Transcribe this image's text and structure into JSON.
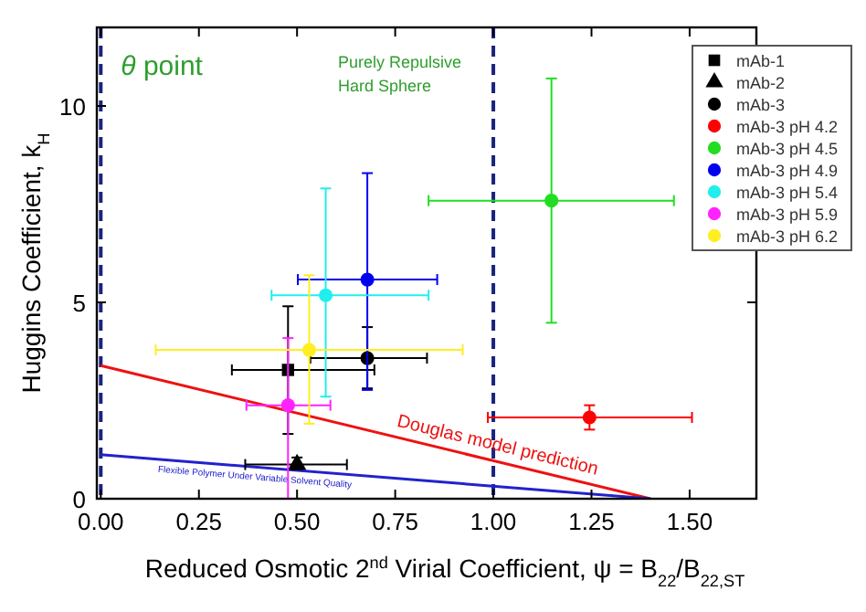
{
  "chart_data": {
    "type": "scatter",
    "xlabel": "Reduced Osmotic 2$^{nd}$ Virial Coefficient, ψ = B$_{22}$/B$_{22,ST}$",
    "ylabel": "Huggins Coefficient, k$_{H}$",
    "xlim": [
      -0.01,
      1.67
    ],
    "ylim": [
      0,
      12
    ],
    "xticks": [
      {
        "value": 0,
        "label": "0.00"
      },
      {
        "value": 0.25,
        "label": "0.25"
      },
      {
        "value": 0.5,
        "label": "0.50"
      },
      {
        "value": 0.75,
        "label": "0.75"
      },
      {
        "value": 1,
        "label": "1.00"
      },
      {
        "value": 1.25,
        "label": "1.25"
      },
      {
        "value": 1.5,
        "label": "1.50"
      }
    ],
    "yticks": [
      0,
      5,
      10
    ],
    "legend": "top right",
    "ref_lines": [
      {
        "axis": "x",
        "value": 0,
        "label": "θ point",
        "color": "#1a237e",
        "line_style": "dashed"
      },
      {
        "axis": "x",
        "value": 1,
        "label": "Purely Repulsive Hard Sphere",
        "color": "#1a237e",
        "line_style": "dashed"
      }
    ],
    "series": [
      {
        "name": "Douglas model prediction",
        "type": "line",
        "color": "#ee1111",
        "x": [
          0,
          1.4
        ],
        "values": [
          3.39,
          0
        ]
      },
      {
        "name": "Flexible Polymer Under Variable Solvent Quality",
        "type": "line",
        "color": "#2222cc",
        "x": [
          0,
          1.4
        ],
        "values": [
          1.12,
          0
        ]
      },
      {
        "name": "mAb-1",
        "color": "#000000",
        "marker": "square",
        "x": [
          0.477
        ],
        "values": [
          3.28
        ],
        "errors": [
          [
            1.65,
            4.9
          ]
        ],
        "xerrors": [
          [
            0.334,
            0.697
          ]
        ]
      },
      {
        "name": "mAb-2",
        "color": "#000000",
        "marker": "triangle",
        "x": [
          0.5
        ],
        "values": [
          0.87
        ],
        "errors": [
          [
            0.75,
            1.05
          ]
        ],
        "xerrors": [
          [
            0.368,
            0.627
          ]
        ]
      },
      {
        "name": "mAb-3",
        "color": "#000000",
        "marker": "circle",
        "x": [
          0.679
        ],
        "values": [
          3.58
        ],
        "errors": [
          [
            2.81,
            4.37
          ]
        ],
        "xerrors": [
          [
            0.534,
            0.831
          ]
        ]
      },
      {
        "name": "mAb-3 pH 4.2",
        "color": "#ff0000",
        "marker": "circle",
        "x": [
          1.245
        ],
        "values": [
          2.07
        ],
        "errors": [
          [
            1.76,
            2.38
          ]
        ],
        "xerrors": [
          [
            0.986,
            1.506
          ]
        ]
      },
      {
        "name": "mAb-3 pH 4.5",
        "color": "#22dd22",
        "marker": "circle",
        "x": [
          1.148
        ],
        "values": [
          7.59
        ],
        "errors": [
          [
            4.48,
            10.7
          ]
        ],
        "xerrors": [
          [
            0.835,
            1.46
          ]
        ]
      },
      {
        "name": "mAb-3 pH 4.9",
        "color": "#0000ee",
        "marker": "circle",
        "x": [
          0.679
        ],
        "values": [
          5.58
        ],
        "errors": [
          [
            2.77,
            8.29
          ]
        ],
        "xerrors": [
          [
            0.502,
            0.857
          ]
        ]
      },
      {
        "name": "mAb-3 pH 5.4",
        "color": "#22eeee",
        "marker": "circle",
        "x": [
          0.573
        ],
        "values": [
          5.18
        ],
        "errors": [
          [
            2.6,
            7.9
          ]
        ],
        "xerrors": [
          [
            0.435,
            0.835
          ]
        ]
      },
      {
        "name": "mAb-3 pH 5.9",
        "color": "#ff22ff",
        "marker": "circle",
        "x": [
          0.477
        ],
        "values": [
          2.38
        ],
        "errors": [
          [
            0,
            4.09
          ]
        ],
        "xerrors": [
          [
            0.371,
            0.585
          ]
        ]
      },
      {
        "name": "mAb-3 pH 6.2",
        "color": "#ffee22",
        "marker": "circle",
        "x": [
          0.531
        ],
        "values": [
          3.79
        ],
        "errors": [
          [
            1.91,
            5.69
          ]
        ],
        "xerrors": [
          [
            0.14,
            0.922
          ]
        ]
      }
    ]
  }
}
